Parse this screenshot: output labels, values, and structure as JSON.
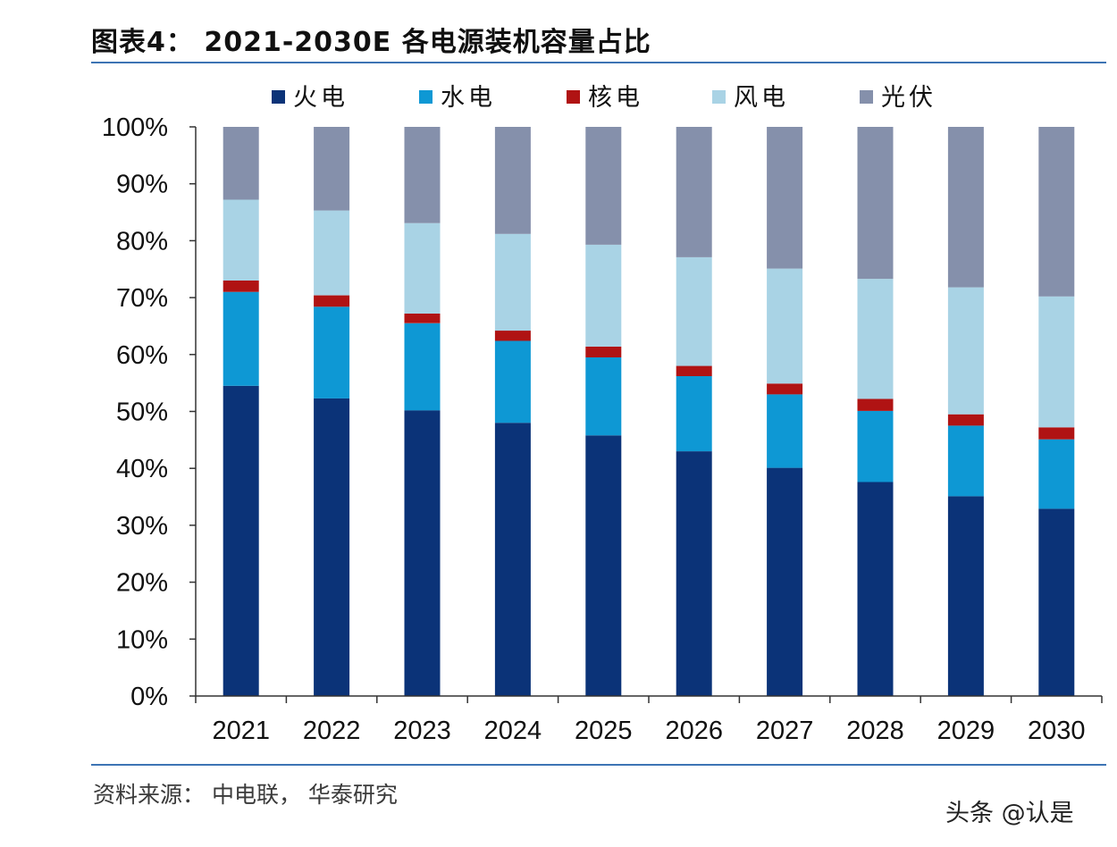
{
  "figure": {
    "title": "图表4： 2021-2030E 各电源装机容量占比",
    "source": "资料来源： 中电联， 华泰研究",
    "watermark": "头条 @认是"
  },
  "chart_data": {
    "type": "bar",
    "stacked": true,
    "title": "2021-2030E 各电源装机容量占比",
    "xlabel": "",
    "ylabel": "",
    "ylim": [
      0,
      100
    ],
    "y_unit": "%",
    "yticks": [
      "0%",
      "10%",
      "20%",
      "30%",
      "40%",
      "50%",
      "60%",
      "70%",
      "80%",
      "90%",
      "100%"
    ],
    "legend_position": "top",
    "grid": false,
    "categories": [
      "2021",
      "2022",
      "2023",
      "2024",
      "2025",
      "2026",
      "2027",
      "2028",
      "2029",
      "2030"
    ],
    "series": [
      {
        "name": "火电",
        "color": "#0b3378",
        "values": [
          54.5,
          52.3,
          50.2,
          48.0,
          45.8,
          43.0,
          40.1,
          37.6,
          35.1,
          32.9
        ]
      },
      {
        "name": "水电",
        "color": "#0e98d4",
        "values": [
          16.5,
          16.1,
          15.3,
          14.4,
          13.7,
          13.2,
          12.9,
          12.5,
          12.4,
          12.2
        ]
      },
      {
        "name": "核电",
        "color": "#b01313",
        "values": [
          2.0,
          2.0,
          1.7,
          1.8,
          1.9,
          1.8,
          1.9,
          2.1,
          2.0,
          2.1
        ]
      },
      {
        "name": "风电",
        "color": "#a9d3e5",
        "values": [
          14.2,
          14.9,
          15.9,
          17.0,
          17.9,
          19.1,
          20.2,
          21.1,
          22.3,
          23.0
        ]
      },
      {
        "name": "光伏",
        "color": "#8590ab",
        "values": [
          12.8,
          14.7,
          16.9,
          18.8,
          20.7,
          22.9,
          24.9,
          26.7,
          28.2,
          29.8
        ]
      }
    ]
  }
}
